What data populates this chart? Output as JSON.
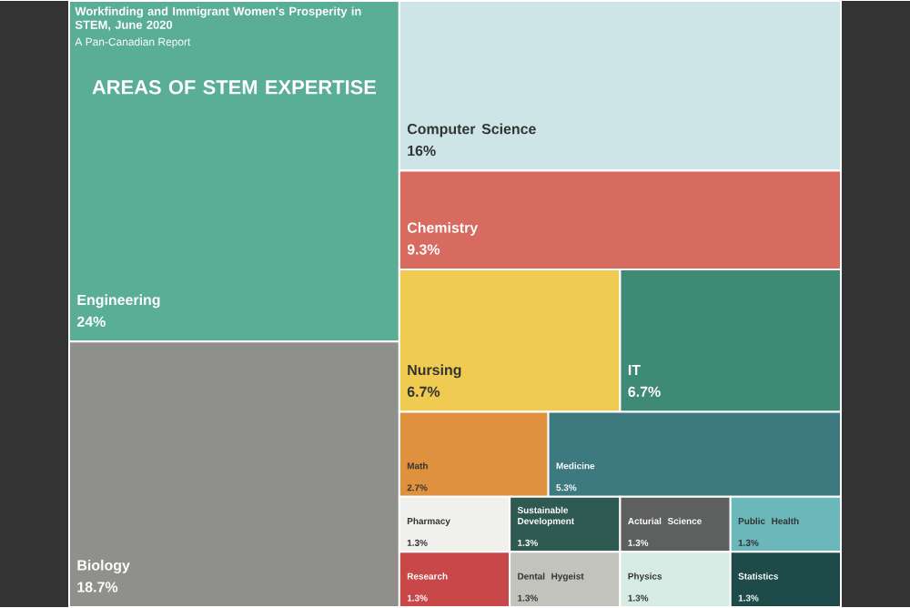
{
  "chart_data": {
    "type": "other",
    "title": "Workfinding and Immigrant Women's Prosperity in STEM, June 2020",
    "subtitle": "A Pan-Canadian Report",
    "annotations": [
      "AREAS OF STEM EXPERTISE"
    ],
    "categories": [
      "Engineering",
      "Biology",
      "Computer Science",
      "Chemistry",
      "Nursing",
      "IT",
      "Math",
      "Medicine",
      "Pharmacy",
      "Sustainable Development",
      "Acturial Science",
      "Public Health",
      "Research",
      "Dental Hygeist",
      "Physics",
      "Statistics"
    ],
    "values": [
      24,
      18.7,
      16,
      9.3,
      6.7,
      6.7,
      2.7,
      5.3,
      1.3,
      1.3,
      1.3,
      1.3,
      1.3,
      1.3,
      1.3,
      1.3
    ],
    "value_labels": [
      "24%",
      "18.7%",
      "16%",
      "9.3%",
      "6.7%",
      "6.7%",
      "2.7%",
      "5.3%",
      "1.3%",
      "1.3%",
      "1.3%",
      "1.3%",
      "1.3%",
      "1.3%",
      "1.3%",
      "1.3%"
    ],
    "colors": [
      "#5aae95",
      "#8f8f8c",
      "#cde5e6",
      "#d86b5f",
      "#efcb52",
      "#3f8a75",
      "#e0913d",
      "#3d7a80",
      "#f0f0ec",
      "#2e5a52",
      "#5d605e",
      "#6bb8bb",
      "#c8484a",
      "#c3c3bd",
      "#d6ebe3",
      "#1e4a4a"
    ]
  }
}
